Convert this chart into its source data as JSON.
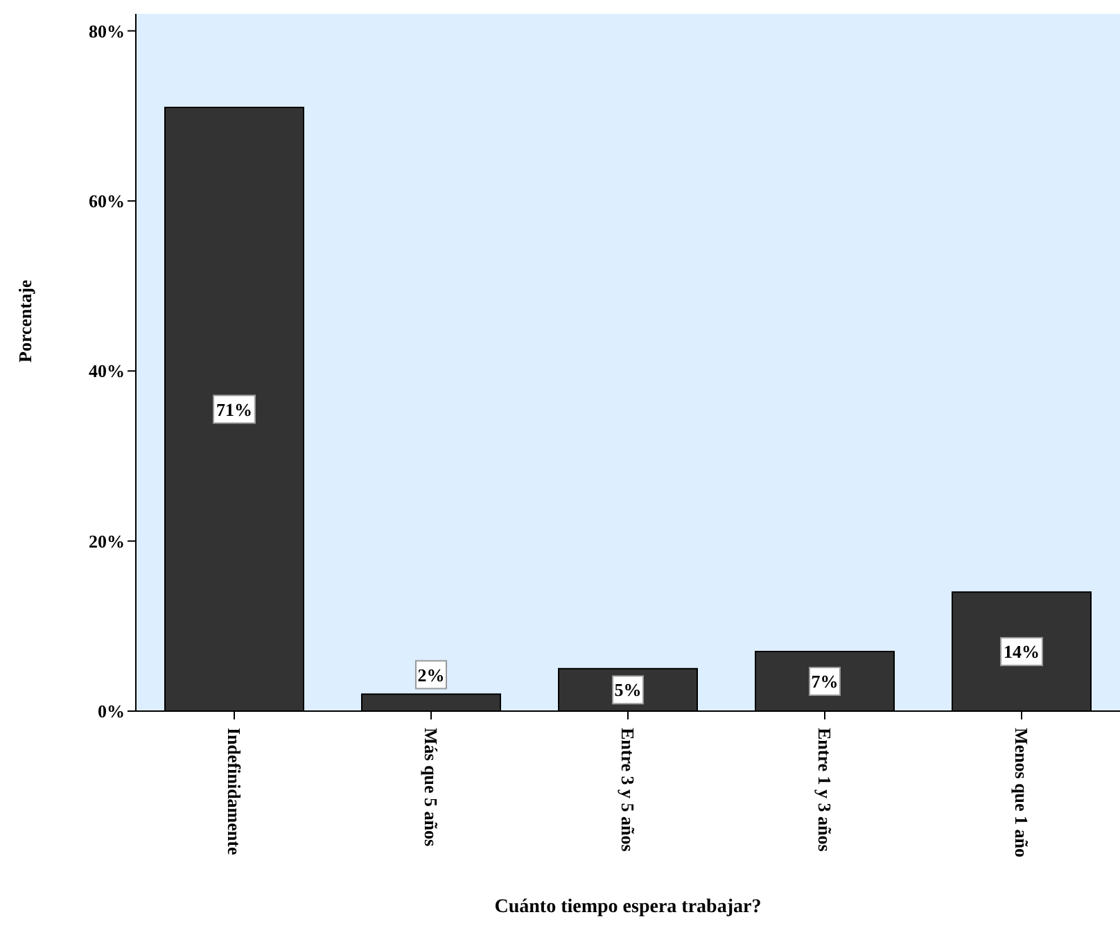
{
  "chart_data": {
    "type": "bar",
    "xlabel": "Cuánto tiempo espera trabajar?",
    "ylabel": "Porcentaje",
    "categories": [
      "Indefinidamente",
      "Más que 5 años",
      "Entre 3 y 5 años",
      "Entre 1 y 3 años",
      "Menos que 1 año"
    ],
    "values": [
      71,
      2,
      5,
      7,
      14
    ],
    "value_labels": [
      "71%",
      "2%",
      "5%",
      "7%",
      "14%"
    ],
    "color": "#333333",
    "ylim": [
      0,
      82
    ],
    "yticks": [
      {
        "value": 0,
        "label": "0%"
      },
      {
        "value": 20,
        "label": "20%"
      },
      {
        "value": 40,
        "label": "40%"
      },
      {
        "value": 60,
        "label": "60%"
      },
      {
        "value": 80,
        "label": "80%"
      }
    ],
    "grid": false,
    "legend": false
  }
}
